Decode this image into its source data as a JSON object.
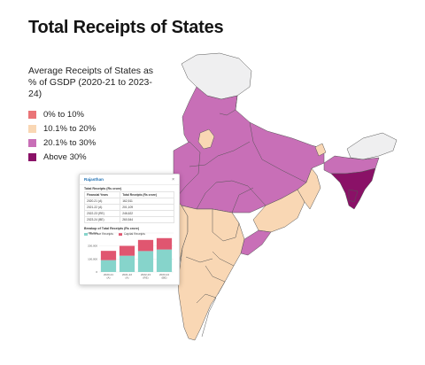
{
  "title": "Total Receipts of States",
  "legend": {
    "title": "Average Receipts of States as % of GSDP (2020-21 to 2023-24)",
    "items": [
      {
        "label": "0% to 10%",
        "color": "#ea7477"
      },
      {
        "label": "10.1% to 20%",
        "color": "#f9d7b4"
      },
      {
        "label": "20.1% to 30%",
        "color": "#c86fb7"
      },
      {
        "label": "Above 30%",
        "color": "#8a1167"
      }
    ]
  },
  "colors": {
    "no_data": "#efeff0",
    "border": "#555555",
    "revenue": "#86d4cb",
    "capital": "#e05670"
  },
  "popup": {
    "state": "Rajasthan",
    "close_icon": "×",
    "table_title": "Total Receipts (Rs crore)",
    "table_headers": [
      "Financial Years",
      "Total Receipts (Rs crore)"
    ],
    "table_rows": [
      [
        "2020-21 (A)",
        "162,511"
      ],
      [
        "2021-22 (A)",
        "201,109"
      ],
      [
        "2022-23 (RE)",
        "246,622"
      ],
      [
        "2023-24 (BE)",
        "260,544"
      ]
    ],
    "chart_title": "Breakup of Total Receipts (Rs crore)",
    "series_labels": [
      "Revenue Receipts",
      "Capital Receipts"
    ]
  },
  "chart_data": {
    "type": "bar",
    "stacked": true,
    "categories": [
      "2020-21 (A)",
      "2021-22 (A)",
      "2022-23 (RE)",
      "2023-24 (BE)"
    ],
    "series": [
      {
        "name": "Revenue Receipts",
        "values": [
          91000,
          125000,
          161000,
          173000
        ]
      },
      {
        "name": "Capital Receipts",
        "values": [
          71511,
          76109,
          85622,
          87544
        ]
      }
    ],
    "yticks": [
      "300,000",
      "200,000",
      "100,000",
      "0"
    ],
    "ylim": [
      0,
      300000
    ]
  }
}
